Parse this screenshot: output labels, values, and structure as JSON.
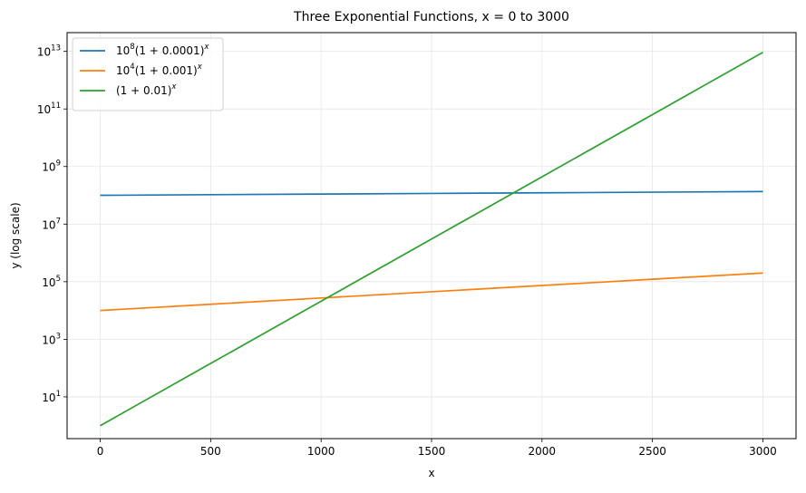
{
  "chart_data": {
    "type": "line",
    "title": "Three Exponential Functions, x = 0 to 3000",
    "xlabel": "x",
    "ylabel": "y (log scale)",
    "yscale": "log",
    "xlim": [
      -150,
      3150
    ],
    "ylim_log10": [
      -0.45,
      13.65
    ],
    "grid": true,
    "legend_position": "upper-left",
    "x_ticks": [
      0,
      500,
      1000,
      1500,
      2000,
      2500,
      3000
    ],
    "x_tick_labels": [
      "0",
      "500",
      "1000",
      "1500",
      "2000",
      "2500",
      "3000"
    ],
    "y_ticks_log10": [
      1,
      3,
      5,
      7,
      9,
      11,
      13
    ],
    "y_tick_labels": [
      {
        "base": "10",
        "exp": "1"
      },
      {
        "base": "10",
        "exp": "3"
      },
      {
        "base": "10",
        "exp": "5"
      },
      {
        "base": "10",
        "exp": "7"
      },
      {
        "base": "10",
        "exp": "9"
      },
      {
        "base": "10",
        "exp": "11"
      },
      {
        "base": "10",
        "exp": "13"
      }
    ],
    "series": [
      {
        "name": "10^8(1 + 0.0001)^x",
        "legend": {
          "pre": "10",
          "pre_exp": "8",
          "main": "(1 + 0.0001)",
          "exp": "x"
        },
        "color": "#1f77b4",
        "x": [
          0,
          500,
          1000,
          1500,
          2000,
          2500,
          3000
        ],
        "y": [
          100000000,
          105127000,
          110517000,
          116183000,
          122140000,
          128402000,
          134986000
        ]
      },
      {
        "name": "10^4(1 + 0.001)^x",
        "legend": {
          "pre": "10",
          "pre_exp": "4",
          "main": "(1 + 0.001)",
          "exp": "x"
        },
        "color": "#ff7f0e",
        "x": [
          0,
          500,
          1000,
          1500,
          2000,
          2500,
          3000
        ],
        "y": [
          10000,
          16477,
          27169,
          44793,
          73853,
          121762,
          200749
        ]
      },
      {
        "name": "(1 + 0.01)^x",
        "legend": {
          "pre": "",
          "pre_exp": "",
          "main": "(1 + 0.01)",
          "exp": "x"
        },
        "color": "#2ca02c",
        "x": [
          0,
          500,
          1000,
          1500,
          2000,
          2500,
          3000
        ],
        "y": [
          1,
          144.8,
          20959,
          3034000,
          439000000,
          63550000000,
          9207000000000
        ]
      }
    ]
  }
}
